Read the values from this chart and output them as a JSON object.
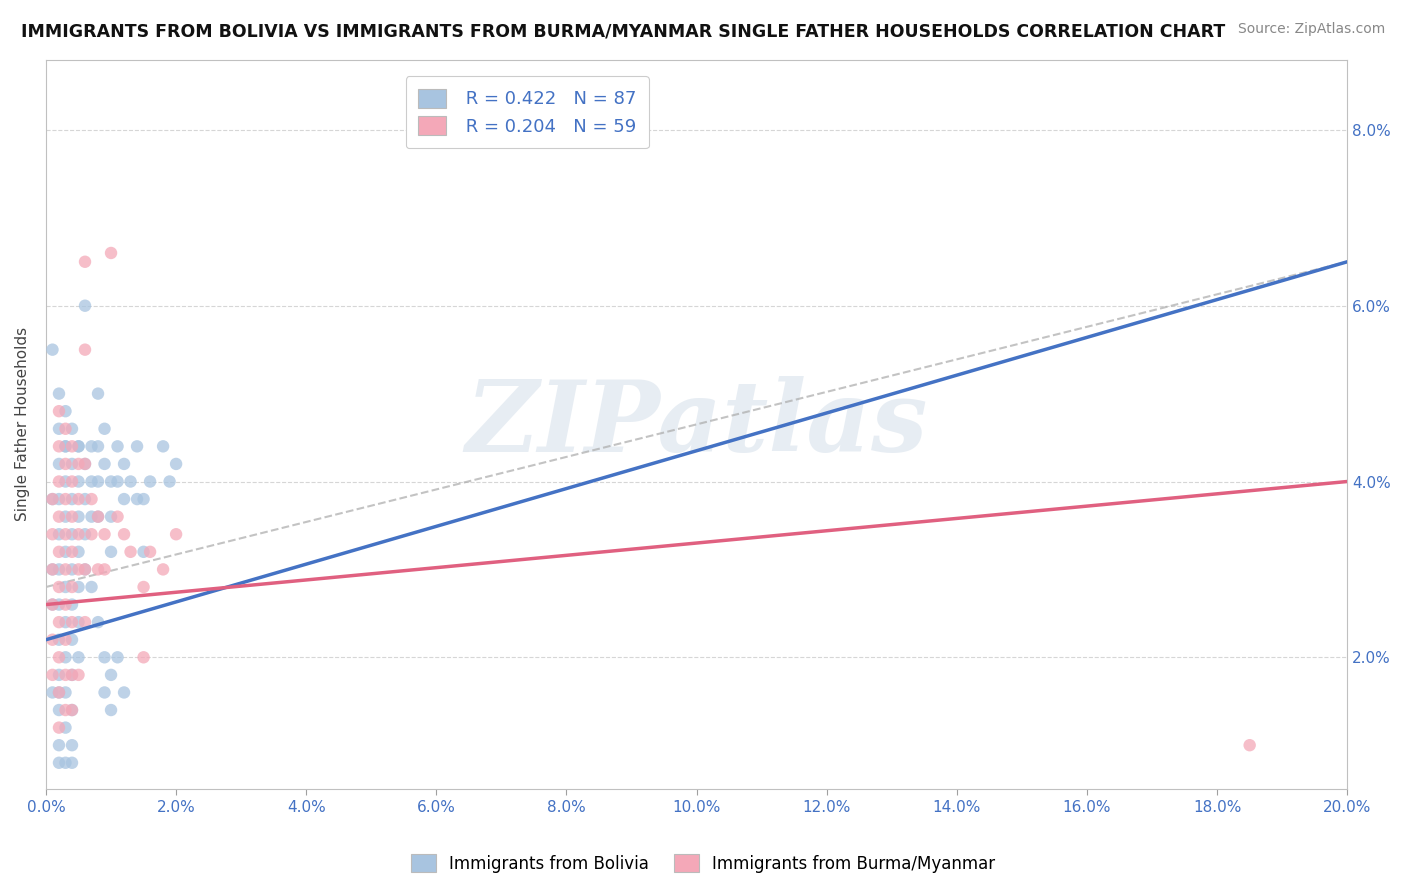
{
  "title": "IMMIGRANTS FROM BOLIVIA VS IMMIGRANTS FROM BURMA/MYANMAR SINGLE FATHER HOUSEHOLDS CORRELATION CHART",
  "source": "Source: ZipAtlas.com",
  "ylabel": "Single Father Households",
  "xlim": [
    0.0,
    0.2
  ],
  "ylim": [
    0.005,
    0.088
  ],
  "bolivia_color": "#a8c4e0",
  "burma_color": "#f4a8b8",
  "bolivia_line_color": "#4472c4",
  "burma_line_color": "#e06080",
  "dashed_line_color": "#aaaaaa",
  "R_bolivia": 0.422,
  "N_bolivia": 87,
  "R_burma": 0.204,
  "N_burma": 59,
  "watermark": "ZIPatlas",
  "bolivia_line": [
    [
      0.0,
      0.022
    ],
    [
      0.2,
      0.065
    ]
  ],
  "burma_line": [
    [
      0.0,
      0.026
    ],
    [
      0.2,
      0.04
    ]
  ],
  "dashed_line": [
    [
      0.0,
      0.028
    ],
    [
      0.2,
      0.065
    ]
  ],
  "bolivia_scatter": [
    [
      0.001,
      0.055
    ],
    [
      0.001,
      0.038
    ],
    [
      0.001,
      0.03
    ],
    [
      0.001,
      0.026
    ],
    [
      0.002,
      0.05
    ],
    [
      0.002,
      0.046
    ],
    [
      0.002,
      0.042
    ],
    [
      0.002,
      0.038
    ],
    [
      0.002,
      0.034
    ],
    [
      0.002,
      0.03
    ],
    [
      0.002,
      0.026
    ],
    [
      0.002,
      0.022
    ],
    [
      0.002,
      0.018
    ],
    [
      0.002,
      0.014
    ],
    [
      0.002,
      0.01
    ],
    [
      0.003,
      0.048
    ],
    [
      0.003,
      0.044
    ],
    [
      0.003,
      0.04
    ],
    [
      0.003,
      0.036
    ],
    [
      0.003,
      0.032
    ],
    [
      0.003,
      0.028
    ],
    [
      0.003,
      0.024
    ],
    [
      0.003,
      0.02
    ],
    [
      0.003,
      0.016
    ],
    [
      0.003,
      0.012
    ],
    [
      0.004,
      0.046
    ],
    [
      0.004,
      0.042
    ],
    [
      0.004,
      0.038
    ],
    [
      0.004,
      0.034
    ],
    [
      0.004,
      0.03
    ],
    [
      0.004,
      0.026
    ],
    [
      0.004,
      0.022
    ],
    [
      0.004,
      0.018
    ],
    [
      0.004,
      0.014
    ],
    [
      0.004,
      0.01
    ],
    [
      0.005,
      0.044
    ],
    [
      0.005,
      0.04
    ],
    [
      0.005,
      0.036
    ],
    [
      0.005,
      0.032
    ],
    [
      0.005,
      0.028
    ],
    [
      0.005,
      0.024
    ],
    [
      0.005,
      0.02
    ],
    [
      0.006,
      0.06
    ],
    [
      0.006,
      0.042
    ],
    [
      0.006,
      0.038
    ],
    [
      0.006,
      0.034
    ],
    [
      0.007,
      0.044
    ],
    [
      0.007,
      0.04
    ],
    [
      0.007,
      0.036
    ],
    [
      0.008,
      0.05
    ],
    [
      0.008,
      0.044
    ],
    [
      0.008,
      0.04
    ],
    [
      0.008,
      0.036
    ],
    [
      0.009,
      0.046
    ],
    [
      0.009,
      0.042
    ],
    [
      0.01,
      0.04
    ],
    [
      0.01,
      0.036
    ],
    [
      0.01,
      0.032
    ],
    [
      0.011,
      0.044
    ],
    [
      0.011,
      0.04
    ],
    [
      0.012,
      0.042
    ],
    [
      0.012,
      0.038
    ],
    [
      0.013,
      0.04
    ],
    [
      0.014,
      0.044
    ],
    [
      0.014,
      0.038
    ],
    [
      0.015,
      0.038
    ],
    [
      0.015,
      0.032
    ],
    [
      0.016,
      0.04
    ],
    [
      0.018,
      0.044
    ],
    [
      0.019,
      0.04
    ],
    [
      0.02,
      0.042
    ],
    [
      0.002,
      0.008
    ],
    [
      0.003,
      0.008
    ],
    [
      0.001,
      0.016
    ],
    [
      0.002,
      0.016
    ],
    [
      0.004,
      0.008
    ],
    [
      0.003,
      0.044
    ],
    [
      0.005,
      0.044
    ],
    [
      0.006,
      0.03
    ],
    [
      0.007,
      0.028
    ],
    [
      0.008,
      0.024
    ],
    [
      0.009,
      0.02
    ],
    [
      0.009,
      0.016
    ],
    [
      0.01,
      0.018
    ],
    [
      0.01,
      0.014
    ],
    [
      0.011,
      0.02
    ],
    [
      0.012,
      0.016
    ]
  ],
  "burma_scatter": [
    [
      0.001,
      0.038
    ],
    [
      0.001,
      0.034
    ],
    [
      0.001,
      0.03
    ],
    [
      0.001,
      0.026
    ],
    [
      0.001,
      0.022
    ],
    [
      0.001,
      0.018
    ],
    [
      0.002,
      0.048
    ],
    [
      0.002,
      0.044
    ],
    [
      0.002,
      0.04
    ],
    [
      0.002,
      0.036
    ],
    [
      0.002,
      0.032
    ],
    [
      0.002,
      0.028
    ],
    [
      0.002,
      0.024
    ],
    [
      0.002,
      0.02
    ],
    [
      0.003,
      0.046
    ],
    [
      0.003,
      0.042
    ],
    [
      0.003,
      0.038
    ],
    [
      0.003,
      0.034
    ],
    [
      0.003,
      0.03
    ],
    [
      0.003,
      0.026
    ],
    [
      0.003,
      0.022
    ],
    [
      0.004,
      0.044
    ],
    [
      0.004,
      0.04
    ],
    [
      0.004,
      0.036
    ],
    [
      0.004,
      0.032
    ],
    [
      0.004,
      0.028
    ],
    [
      0.004,
      0.024
    ],
    [
      0.005,
      0.042
    ],
    [
      0.005,
      0.038
    ],
    [
      0.005,
      0.034
    ],
    [
      0.005,
      0.03
    ],
    [
      0.006,
      0.065
    ],
    [
      0.006,
      0.055
    ],
    [
      0.006,
      0.042
    ],
    [
      0.007,
      0.038
    ],
    [
      0.007,
      0.034
    ],
    [
      0.008,
      0.036
    ],
    [
      0.008,
      0.03
    ],
    [
      0.009,
      0.034
    ],
    [
      0.009,
      0.03
    ],
    [
      0.01,
      0.066
    ],
    [
      0.011,
      0.036
    ],
    [
      0.012,
      0.034
    ],
    [
      0.013,
      0.032
    ],
    [
      0.015,
      0.028
    ],
    [
      0.015,
      0.02
    ],
    [
      0.016,
      0.032
    ],
    [
      0.018,
      0.03
    ],
    [
      0.02,
      0.034
    ],
    [
      0.185,
      0.01
    ],
    [
      0.002,
      0.016
    ],
    [
      0.002,
      0.012
    ],
    [
      0.003,
      0.018
    ],
    [
      0.003,
      0.014
    ],
    [
      0.004,
      0.018
    ],
    [
      0.004,
      0.014
    ],
    [
      0.005,
      0.018
    ],
    [
      0.006,
      0.03
    ],
    [
      0.006,
      0.024
    ]
  ]
}
